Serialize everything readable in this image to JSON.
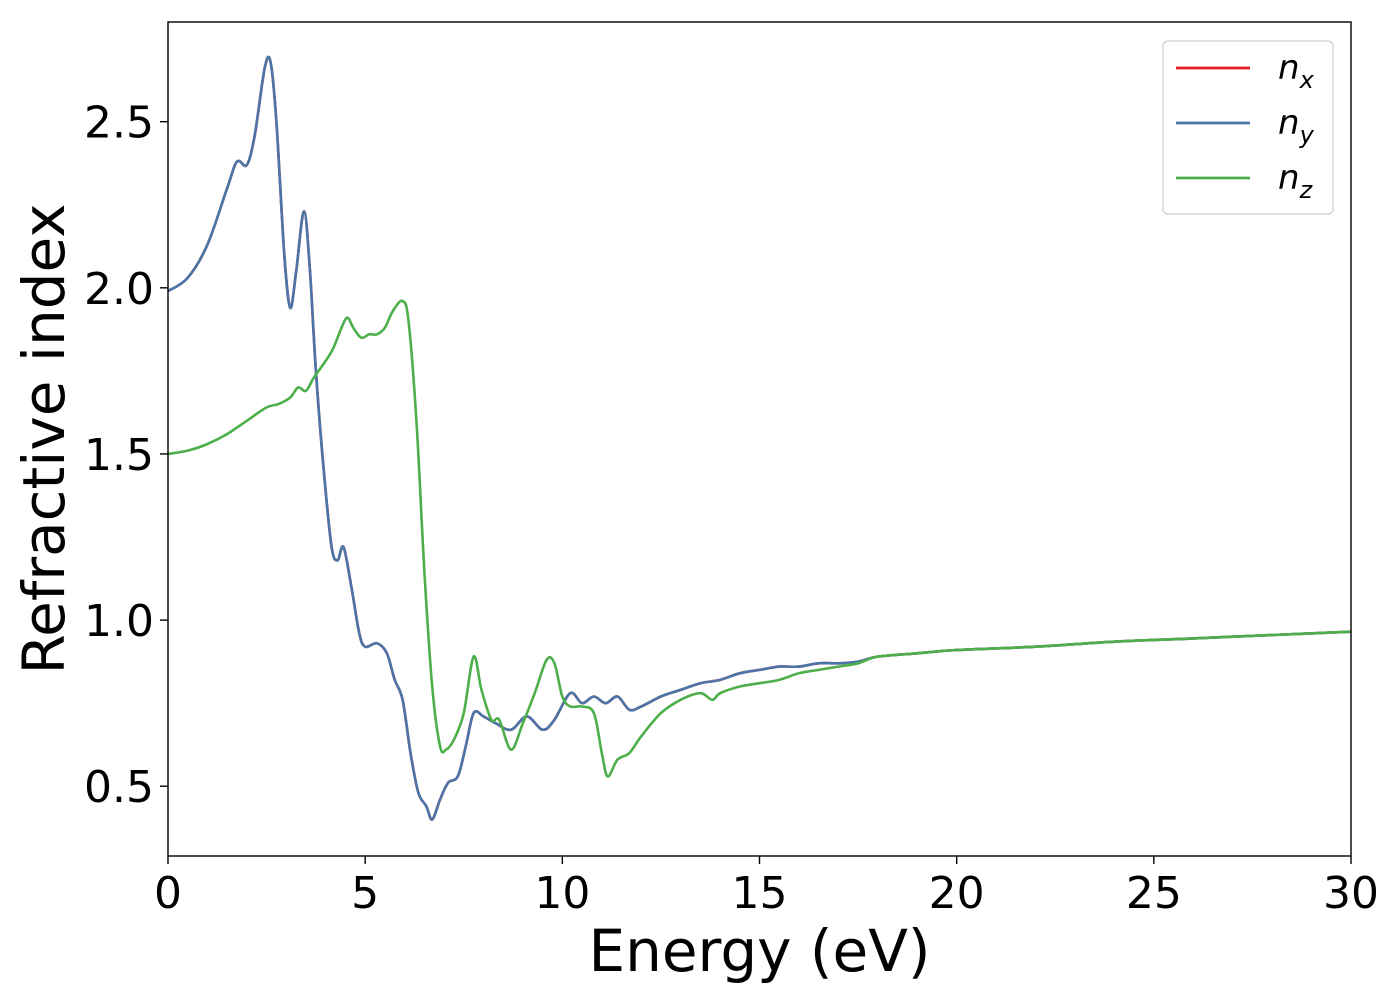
{
  "chart_data": {
    "type": "line",
    "title": "",
    "xlabel": "Energy (eV)",
    "ylabel": "Refractive index",
    "xlim": [
      0,
      30
    ],
    "ylim": [
      0.29,
      2.8
    ],
    "xticks": [
      0,
      5,
      10,
      15,
      20,
      25,
      30
    ],
    "xtick_labels": [
      "0",
      "5",
      "10",
      "15",
      "20",
      "25",
      "30"
    ],
    "yticks": [
      0.5,
      1.0,
      1.5,
      2.0,
      2.5
    ],
    "ytick_labels": [
      "0.5",
      "1.0",
      "1.5",
      "2.0",
      "2.5"
    ],
    "grid": false,
    "legend_position": "top-right",
    "series": [
      {
        "name": "n_x",
        "label_main": "n",
        "label_sub": "x",
        "color": "#e41a1c",
        "x": [
          0,
          0.5,
          1.0,
          1.5,
          1.75,
          2.0,
          2.2,
          2.45,
          2.6,
          2.75,
          2.95,
          3.1,
          3.25,
          3.45,
          3.6,
          3.75,
          3.95,
          4.15,
          4.3,
          4.45,
          4.65,
          4.85,
          5.0,
          5.3,
          5.55,
          5.75,
          5.95,
          6.15,
          6.35,
          6.55,
          6.7,
          6.9,
          7.1,
          7.35,
          7.55,
          7.75,
          8.0,
          8.3,
          8.7,
          9.1,
          9.5,
          9.8,
          10.2,
          10.5,
          10.8,
          11.1,
          11.4,
          11.7,
          12.0,
          12.5,
          13.0,
          13.5,
          14.0,
          14.5,
          15.0,
          15.5,
          16.0,
          16.5,
          17.0,
          17.5,
          18.0,
          19.0,
          20.0,
          22.0,
          24.0,
          26.0,
          28.0,
          30.0
        ],
        "y": [
          1.99,
          2.03,
          2.13,
          2.3,
          2.38,
          2.37,
          2.46,
          2.66,
          2.68,
          2.5,
          2.1,
          1.94,
          2.05,
          2.23,
          2.05,
          1.75,
          1.45,
          1.22,
          1.18,
          1.22,
          1.1,
          0.96,
          0.92,
          0.93,
          0.9,
          0.82,
          0.76,
          0.6,
          0.48,
          0.44,
          0.4,
          0.46,
          0.51,
          0.53,
          0.62,
          0.72,
          0.71,
          0.69,
          0.67,
          0.71,
          0.67,
          0.7,
          0.78,
          0.75,
          0.77,
          0.75,
          0.77,
          0.73,
          0.74,
          0.77,
          0.79,
          0.81,
          0.82,
          0.84,
          0.85,
          0.86,
          0.86,
          0.87,
          0.87,
          0.875,
          0.89,
          0.9,
          0.91,
          0.92,
          0.935,
          0.945,
          0.955,
          0.965
        ]
      },
      {
        "name": "n_y",
        "label_main": "n",
        "label_sub": "y",
        "color": "#4a75a8",
        "x": [
          0,
          0.5,
          1.0,
          1.5,
          1.75,
          2.0,
          2.2,
          2.45,
          2.6,
          2.75,
          2.95,
          3.1,
          3.25,
          3.45,
          3.6,
          3.75,
          3.95,
          4.15,
          4.3,
          4.45,
          4.65,
          4.85,
          5.0,
          5.3,
          5.55,
          5.75,
          5.95,
          6.15,
          6.35,
          6.55,
          6.7,
          6.9,
          7.1,
          7.35,
          7.55,
          7.75,
          8.0,
          8.3,
          8.7,
          9.1,
          9.5,
          9.8,
          10.2,
          10.5,
          10.8,
          11.1,
          11.4,
          11.7,
          12.0,
          12.5,
          13.0,
          13.5,
          14.0,
          14.5,
          15.0,
          15.5,
          16.0,
          16.5,
          17.0,
          17.5,
          18.0,
          19.0,
          20.0,
          22.0,
          24.0,
          26.0,
          28.0,
          30.0
        ],
        "y": [
          1.99,
          2.03,
          2.13,
          2.3,
          2.38,
          2.37,
          2.46,
          2.66,
          2.68,
          2.5,
          2.1,
          1.94,
          2.05,
          2.23,
          2.05,
          1.75,
          1.45,
          1.22,
          1.18,
          1.22,
          1.1,
          0.96,
          0.92,
          0.93,
          0.9,
          0.82,
          0.76,
          0.6,
          0.48,
          0.44,
          0.4,
          0.46,
          0.51,
          0.53,
          0.62,
          0.72,
          0.71,
          0.69,
          0.67,
          0.71,
          0.67,
          0.7,
          0.78,
          0.75,
          0.77,
          0.75,
          0.77,
          0.73,
          0.74,
          0.77,
          0.79,
          0.81,
          0.82,
          0.84,
          0.85,
          0.86,
          0.86,
          0.87,
          0.87,
          0.875,
          0.89,
          0.9,
          0.91,
          0.92,
          0.935,
          0.945,
          0.955,
          0.965
        ]
      },
      {
        "name": "n_z",
        "label_main": "n",
        "label_sub": "z",
        "color": "#4daf4a",
        "x": [
          0,
          0.5,
          1.0,
          1.5,
          2.0,
          2.5,
          2.8,
          3.1,
          3.3,
          3.5,
          3.7,
          4.0,
          4.2,
          4.4,
          4.55,
          4.7,
          4.9,
          5.1,
          5.3,
          5.5,
          5.7,
          5.95,
          6.1,
          6.3,
          6.5,
          6.7,
          6.9,
          7.05,
          7.25,
          7.5,
          7.75,
          7.95,
          8.2,
          8.4,
          8.7,
          9.0,
          9.3,
          9.6,
          9.8,
          10.0,
          10.2,
          10.5,
          10.8,
          11.0,
          11.15,
          11.4,
          11.7,
          12.0,
          12.5,
          13.0,
          13.5,
          13.8,
          14.0,
          14.5,
          15.0,
          15.5,
          16.0,
          16.5,
          17.0,
          17.5,
          18.0,
          19.0,
          20.0,
          22.0,
          24.0,
          26.0,
          28.0,
          30.0
        ],
        "y": [
          1.5,
          1.51,
          1.53,
          1.56,
          1.6,
          1.64,
          1.65,
          1.67,
          1.7,
          1.69,
          1.73,
          1.78,
          1.82,
          1.88,
          1.91,
          1.88,
          1.85,
          1.86,
          1.86,
          1.88,
          1.93,
          1.96,
          1.9,
          1.6,
          1.15,
          0.8,
          0.62,
          0.61,
          0.64,
          0.72,
          0.89,
          0.79,
          0.7,
          0.7,
          0.61,
          0.69,
          0.78,
          0.88,
          0.87,
          0.77,
          0.74,
          0.74,
          0.72,
          0.6,
          0.53,
          0.58,
          0.6,
          0.65,
          0.72,
          0.76,
          0.78,
          0.76,
          0.78,
          0.8,
          0.81,
          0.82,
          0.84,
          0.85,
          0.86,
          0.87,
          0.89,
          0.9,
          0.91,
          0.92,
          0.935,
          0.945,
          0.955,
          0.965
        ]
      }
    ]
  }
}
